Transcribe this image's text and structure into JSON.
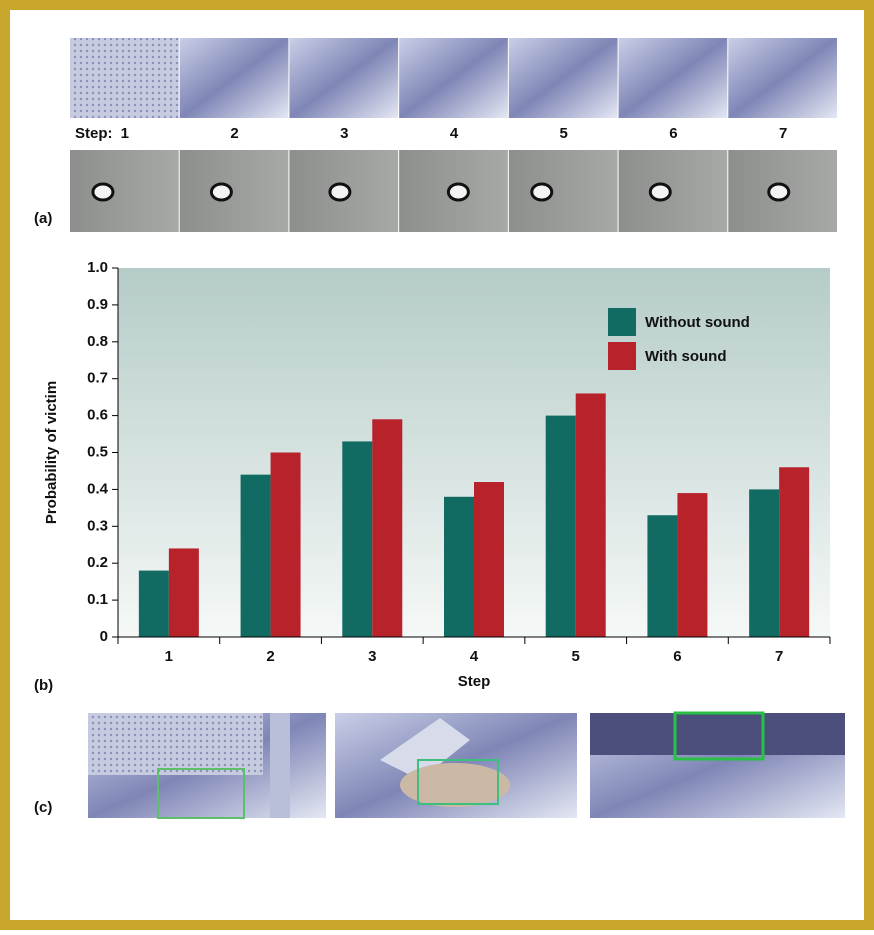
{
  "strip": {
    "step_label": "Step:",
    "steps": [
      "1",
      "2",
      "3",
      "4",
      "5",
      "6",
      "7"
    ]
  },
  "panels": {
    "a": "(a)",
    "b": "(b)",
    "c": "(c)"
  },
  "chart_data": {
    "type": "bar",
    "categories": [
      "1",
      "2",
      "3",
      "4",
      "5",
      "6",
      "7"
    ],
    "x_label": "Step",
    "y_label": "Probability of victim",
    "series": [
      {
        "name": "Without sound",
        "color": "#116b63",
        "values": [
          0.18,
          0.44,
          0.53,
          0.38,
          0.6,
          0.33,
          0.4
        ]
      },
      {
        "name": "With sound",
        "color": "#b8222b",
        "values": [
          0.24,
          0.5,
          0.59,
          0.42,
          0.66,
          0.39,
          0.46
        ]
      }
    ],
    "ylim": [
      0,
      1
    ],
    "yticks": [
      0,
      0.1,
      0.2,
      0.3,
      0.4,
      0.5,
      0.6,
      0.7,
      0.8,
      0.9,
      {
        "value": 1,
        "label": "1.0"
      }
    ],
    "grid": false,
    "legend": "upper right"
  }
}
